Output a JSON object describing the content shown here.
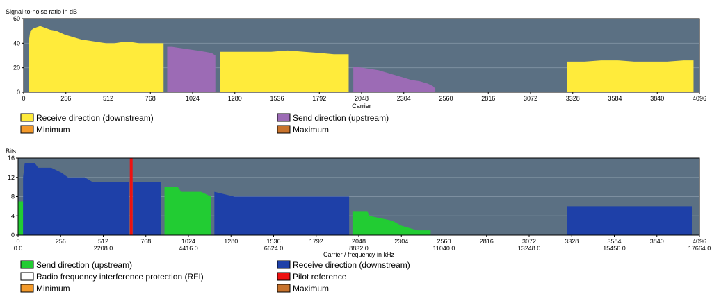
{
  "chart_data": [
    {
      "type": "area",
      "ylabel": "Signal-to-noise ratio in dB",
      "xlabel": "Carrier",
      "xlim": [
        0,
        4096
      ],
      "ylim": [
        0,
        60
      ],
      "x_ticks": [
        0,
        256,
        512,
        768,
        1024,
        1280,
        1536,
        1792,
        2048,
        2304,
        2560,
        2816,
        3072,
        3328,
        3584,
        3840,
        4096
      ],
      "y_ticks": [
        0,
        20,
        40,
        60
      ],
      "grid": true,
      "legend_position": "bottom",
      "series": [
        {
          "name": "Receive direction (downstream)",
          "color": "#ffeb3b",
          "segments": [
            [
              [
                30,
                40
              ],
              [
                40,
                50
              ],
              [
                60,
                52
              ],
              [
                80,
                53
              ],
              [
                100,
                54
              ],
              [
                120,
                53
              ],
              [
                140,
                52
              ],
              [
                160,
                51
              ],
              [
                200,
                50
              ],
              [
                250,
                47
              ],
              [
                300,
                45
              ],
              [
                350,
                43
              ],
              [
                400,
                42
              ],
              [
                450,
                41
              ],
              [
                500,
                40
              ],
              [
                550,
                40
              ],
              [
                600,
                41
              ],
              [
                650,
                41
              ],
              [
                700,
                40
              ],
              [
                750,
                40
              ],
              [
                800,
                40
              ],
              [
                820,
                40
              ],
              [
                848,
                40
              ]
            ],
            [
              [
                1190,
                33
              ],
              [
                1300,
                33
              ],
              [
                1400,
                33
              ],
              [
                1500,
                33
              ],
              [
                1600,
                34
              ],
              [
                1700,
                33
              ],
              [
                1800,
                32
              ],
              [
                1880,
                31
              ],
              [
                1970,
                31
              ]
            ],
            [
              [
                3295,
                25
              ],
              [
                3350,
                25
              ],
              [
                3400,
                25
              ],
              [
                3500,
                26
              ],
              [
                3600,
                26
              ],
              [
                3700,
                25
              ],
              [
                3800,
                25
              ],
              [
                3900,
                25
              ],
              [
                4000,
                26
              ],
              [
                4060,
                26
              ]
            ]
          ]
        },
        {
          "name": "Send direction (upstream)",
          "color": "#9c6bb5",
          "segments": [
            [
              [
                870,
                37
              ],
              [
                900,
                37
              ],
              [
                950,
                36
              ],
              [
                1000,
                35
              ],
              [
                1050,
                34
              ],
              [
                1100,
                33
              ],
              [
                1140,
                32
              ],
              [
                1162,
                30
              ]
            ],
            [
              [
                1998,
                21
              ],
              [
                2050,
                20
              ],
              [
                2100,
                19
              ],
              [
                2150,
                18
              ],
              [
                2200,
                16
              ],
              [
                2250,
                14
              ],
              [
                2300,
                12
              ],
              [
                2350,
                10
              ],
              [
                2400,
                9
              ],
              [
                2450,
                7
              ],
              [
                2480,
                5
              ],
              [
                2495,
                3
              ]
            ]
          ]
        },
        {
          "name": "Minimum",
          "color": "#f39a2b",
          "segments": []
        },
        {
          "name": "Maximum",
          "color": "#c8732c",
          "segments": []
        }
      ]
    },
    {
      "type": "area",
      "ylabel": "Bits",
      "xlabel": "Carrier / frequency in kHz",
      "xlim": [
        0,
        4096
      ],
      "ylim": [
        0,
        16
      ],
      "x_ticks": [
        0,
        256,
        512,
        768,
        1024,
        1280,
        1536,
        1792,
        2048,
        2304,
        2560,
        2816,
        3072,
        3328,
        3584,
        3840,
        4096
      ],
      "x_ticks_khz": [
        "0.0",
        "",
        "2208.0",
        "",
        "4416.0",
        "",
        "6624.0",
        "",
        "8832.0",
        "",
        "11040.0",
        "",
        "13248.0",
        "",
        "15456.0",
        "",
        "17664.0"
      ],
      "y_ticks": [
        0,
        4,
        8,
        12,
        16
      ],
      "grid": true,
      "legend_position": "bottom",
      "series": [
        {
          "name": "Send direction (upstream)",
          "color": "#22cc33",
          "segments": [
            [
              [
                0,
                7
              ],
              [
                30,
                7
              ]
            ],
            [
              [
                880,
                10
              ],
              [
                960,
                10
              ],
              [
                980,
                9
              ],
              [
                1100,
                9
              ],
              [
                1160,
                8
              ]
            ],
            [
              [
                2010,
                5
              ],
              [
                2100,
                5
              ],
              [
                2110,
                4
              ],
              [
                2250,
                3
              ],
              [
                2300,
                2
              ],
              [
                2400,
                1
              ],
              [
                2480,
                1
              ]
            ]
          ]
        },
        {
          "name": "Receive direction (downstream)",
          "color": "#1e40a8",
          "segments": [
            [
              [
                30,
                12
              ],
              [
                40,
                15
              ],
              [
                100,
                15
              ],
              [
                120,
                14
              ],
              [
                200,
                14
              ],
              [
                260,
                13
              ],
              [
                300,
                12
              ],
              [
                400,
                12
              ],
              [
                450,
                11
              ],
              [
                500,
                11
              ],
              [
                550,
                11
              ],
              [
                600,
                11
              ],
              [
                650,
                11
              ],
              [
                665,
                11
              ]
            ],
            [
              [
                690,
                11
              ],
              [
                860,
                11
              ]
            ],
            [
              [
                1180,
                9
              ],
              [
                1300,
                8
              ],
              [
                1400,
                8
              ],
              [
                1500,
                8
              ],
              [
                1600,
                8
              ],
              [
                1700,
                8
              ],
              [
                1800,
                8
              ],
              [
                1860,
                8
              ],
              [
                1990,
                8
              ]
            ],
            [
              [
                3300,
                6
              ],
              [
                3400,
                6
              ],
              [
                3500,
                6
              ],
              [
                3600,
                6
              ],
              [
                3700,
                6
              ],
              [
                3800,
                6
              ],
              [
                3900,
                6
              ],
              [
                4000,
                6
              ],
              [
                4050,
                6
              ]
            ]
          ]
        },
        {
          "name": "Radio frequency interference protection (RFI)",
          "color": "#ffffff",
          "segments": []
        },
        {
          "name": "Pilot reference",
          "color": "#ee1111",
          "marker_x": 680
        },
        {
          "name": "Minimum",
          "color": "#f39a2b",
          "segments": []
        },
        {
          "name": "Maximum",
          "color": "#c8732c",
          "segments": []
        }
      ]
    }
  ],
  "colors": {
    "plot_background": "#5b7083",
    "grid": "#7d8fa0"
  }
}
